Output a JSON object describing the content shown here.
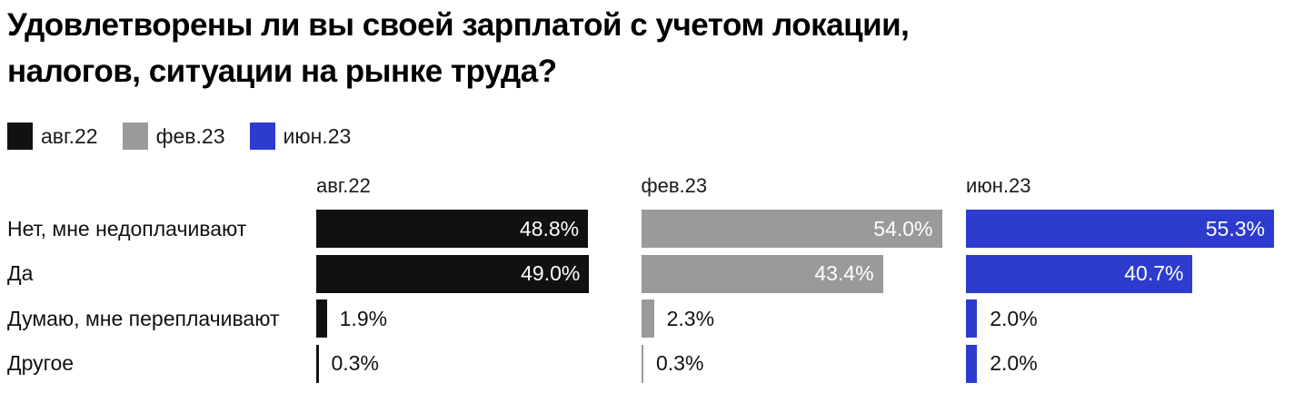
{
  "title_lines": [
    "Удовлетворены ли вы своей зарплатой с учетом локации,",
    "налогов, ситуации на рынке труда?"
  ],
  "legend": [
    {
      "label": "авг.22",
      "color": "#111111"
    },
    {
      "label": "фев.23",
      "color": "#9a9a9a"
    },
    {
      "label": "июн.23",
      "color": "#2d3bce"
    }
  ],
  "colors": {
    "aug22": "#111111",
    "feb23": "#9a9a9a",
    "jun23": "#2d3bce",
    "background": "#ffffff"
  },
  "chart_data": {
    "type": "bar",
    "orientation": "horizontal",
    "title": "Удовлетворены ли вы своей зарплатой с учетом локации, налогов, ситуации на рынке труда?",
    "categories": [
      "Нет, мне недоплачивают",
      "Да",
      "Думаю, мне переплачивают",
      "Другое"
    ],
    "series": [
      {
        "name": "авг.22",
        "color": "#111111",
        "values": [
          48.8,
          49.0,
          1.9,
          0.3
        ],
        "labels": [
          "48.8%",
          "49.0%",
          "1.9%",
          "0.3%"
        ]
      },
      {
        "name": "фев.23",
        "color": "#9a9a9a",
        "values": [
          54.0,
          43.4,
          2.3,
          0.3
        ],
        "labels": [
          "54.0%",
          "43.4%",
          "2.3%",
          "0.3%"
        ]
      },
      {
        "name": "июн.23",
        "color": "#2d3bce",
        "values": [
          55.3,
          40.7,
          2.0,
          2.0
        ],
        "labels": [
          "55.3%",
          "40.7%",
          "2.0%",
          "2.0%"
        ]
      }
    ],
    "column_headers": [
      "авг.22",
      "фев.23",
      "июн.23"
    ],
    "legend_position": "top",
    "value_suffix": "%",
    "xlim": [
      0,
      58
    ],
    "grid": false
  }
}
